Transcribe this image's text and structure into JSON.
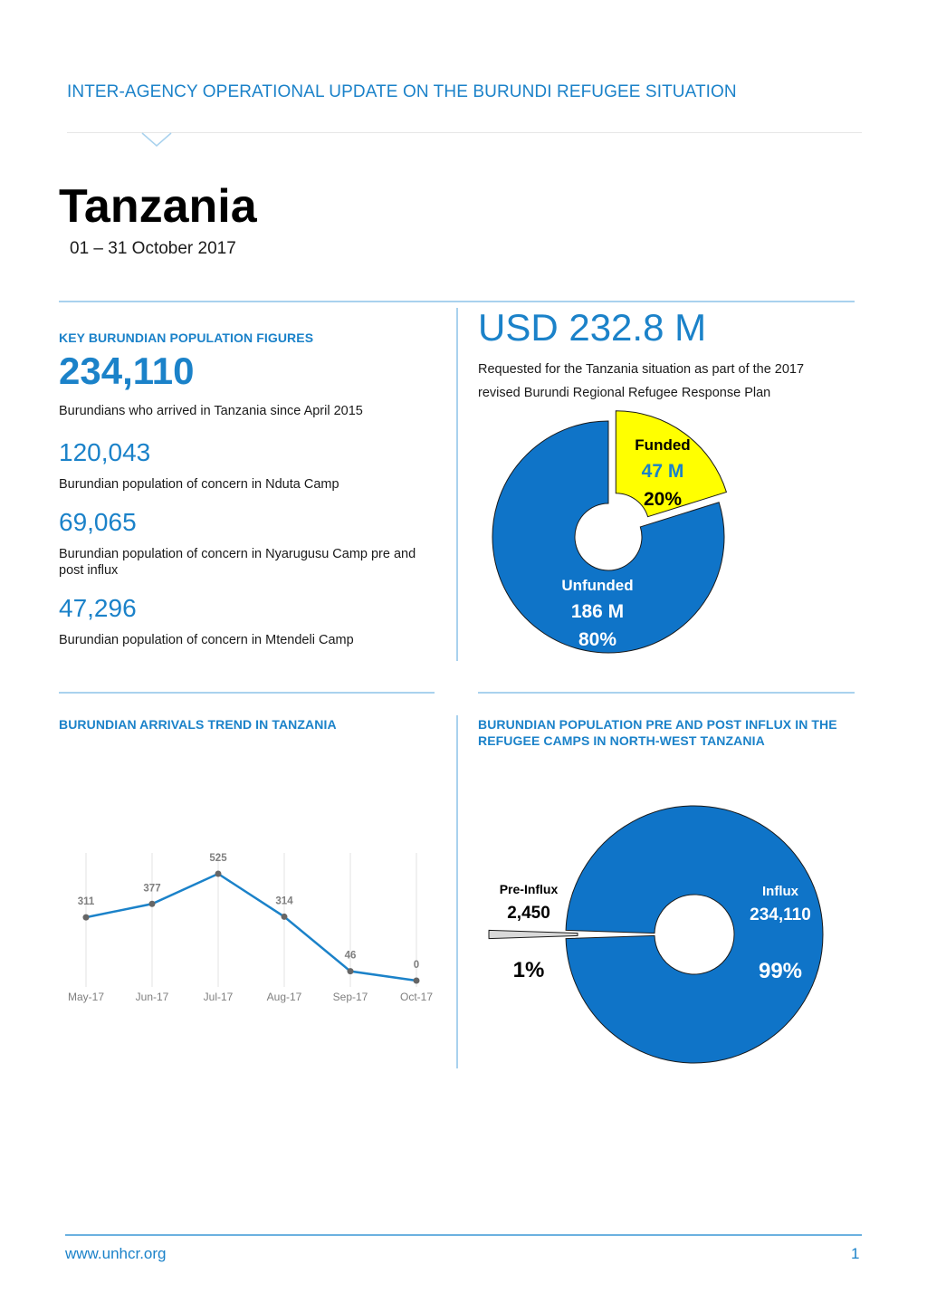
{
  "header": {
    "title": "INTER-AGENCY OPERATIONAL UPDATE ON THE BURUNDI REFUGEE SITUATION"
  },
  "page": {
    "title": "Tanzania",
    "date": "01 – 31 October 2017"
  },
  "key_figures": {
    "heading": "KEY BURUNDIAN POPULATION FIGURES",
    "items": [
      {
        "value": "234,110",
        "label": "Burundians who arrived in Tanzania since April 2015"
      },
      {
        "value": "120,043",
        "label": "Burundian population of concern in Nduta Camp"
      },
      {
        "value": "69,065",
        "label": "Burundian population of concern in Nyarugusu Camp pre and post influx"
      },
      {
        "value": "47,296",
        "label": "Burundian population of concern in Mtendeli Camp"
      }
    ]
  },
  "funding": {
    "amount": "USD 232.8 M",
    "description": "Requested for the Tanzania situation as part of the 2017 revised Burundi Regional Refugee Response Plan"
  },
  "arrivals": {
    "heading": "BURUNDIAN ARRIVALS TREND IN TANZANIA"
  },
  "influx": {
    "heading": "BURUNDIAN POPULATION PRE AND POST INFLUX IN THE REFUGEE CAMPS IN NORTH-WEST TANZANIA"
  },
  "colors": {
    "accent": "#1b82c9",
    "donut_blue": "#0f74c8",
    "funded_yellow": "#ffff00"
  },
  "chart_data": [
    {
      "type": "pie",
      "variant": "donut",
      "categories": [
        "Funded",
        "Unfunded"
      ],
      "values": [
        47,
        186
      ],
      "value_labels": [
        "47 M",
        "186 M"
      ],
      "percent_labels": [
        "20%",
        "80%"
      ],
      "colors": [
        "#ffff00",
        "#0f74c8"
      ],
      "exploded": "Funded"
    },
    {
      "type": "line",
      "categories": [
        "May-17",
        "Jun-17",
        "Jul-17",
        "Aug-17",
        "Sep-17",
        "Oct-17"
      ],
      "values": [
        311,
        377,
        525,
        314,
        46,
        0
      ],
      "color": "#1b82c9",
      "grid": "vertical"
    },
    {
      "type": "pie",
      "variant": "donut",
      "categories": [
        "Pre-Influx",
        "Influx"
      ],
      "values": [
        2450,
        234110
      ],
      "value_labels": [
        "2,450",
        "234,110"
      ],
      "percent_labels": [
        "1%",
        "99%"
      ],
      "colors": [
        "#d9d9d9",
        "#0f74c8"
      ],
      "exploded": "Pre-Influx"
    }
  ],
  "footer": {
    "url": "www.unhcr.org",
    "page_number": "1"
  }
}
